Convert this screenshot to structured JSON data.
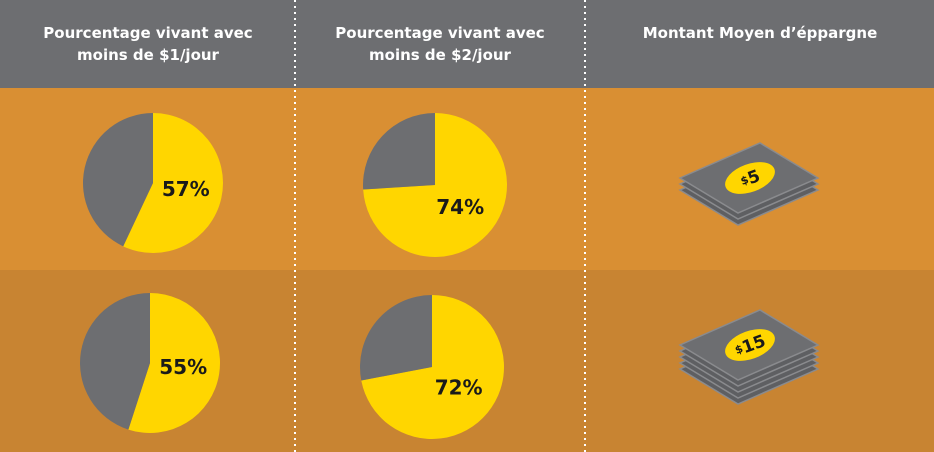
{
  "columns": [
    "Pourcentage vivant avec moins de $1/jour",
    "Pourcentage vivant avec moins de $2/jour",
    "Montant Moyen d’éppargne"
  ],
  "chart_data": [
    {
      "type": "pie",
      "values": [
        57,
        43
      ],
      "colors": [
        "#ffd600",
        "#6d6e71"
      ],
      "value_label": "57%"
    },
    {
      "type": "pie",
      "values": [
        74,
        26
      ],
      "colors": [
        "#ffd600",
        "#6d6e71"
      ],
      "value_label": "74%"
    },
    {
      "type": "pie",
      "values": [
        55,
        45
      ],
      "colors": [
        "#ffd600",
        "#6d6e71"
      ],
      "value_label": "55%"
    },
    {
      "type": "pie",
      "values": [
        72,
        28
      ],
      "colors": [
        "#ffd600",
        "#6d6e71"
      ],
      "value_label": "72%"
    }
  ],
  "savings": [
    {
      "symbol": "$",
      "amount": "5"
    },
    {
      "symbol": "$",
      "amount": "15"
    }
  ]
}
